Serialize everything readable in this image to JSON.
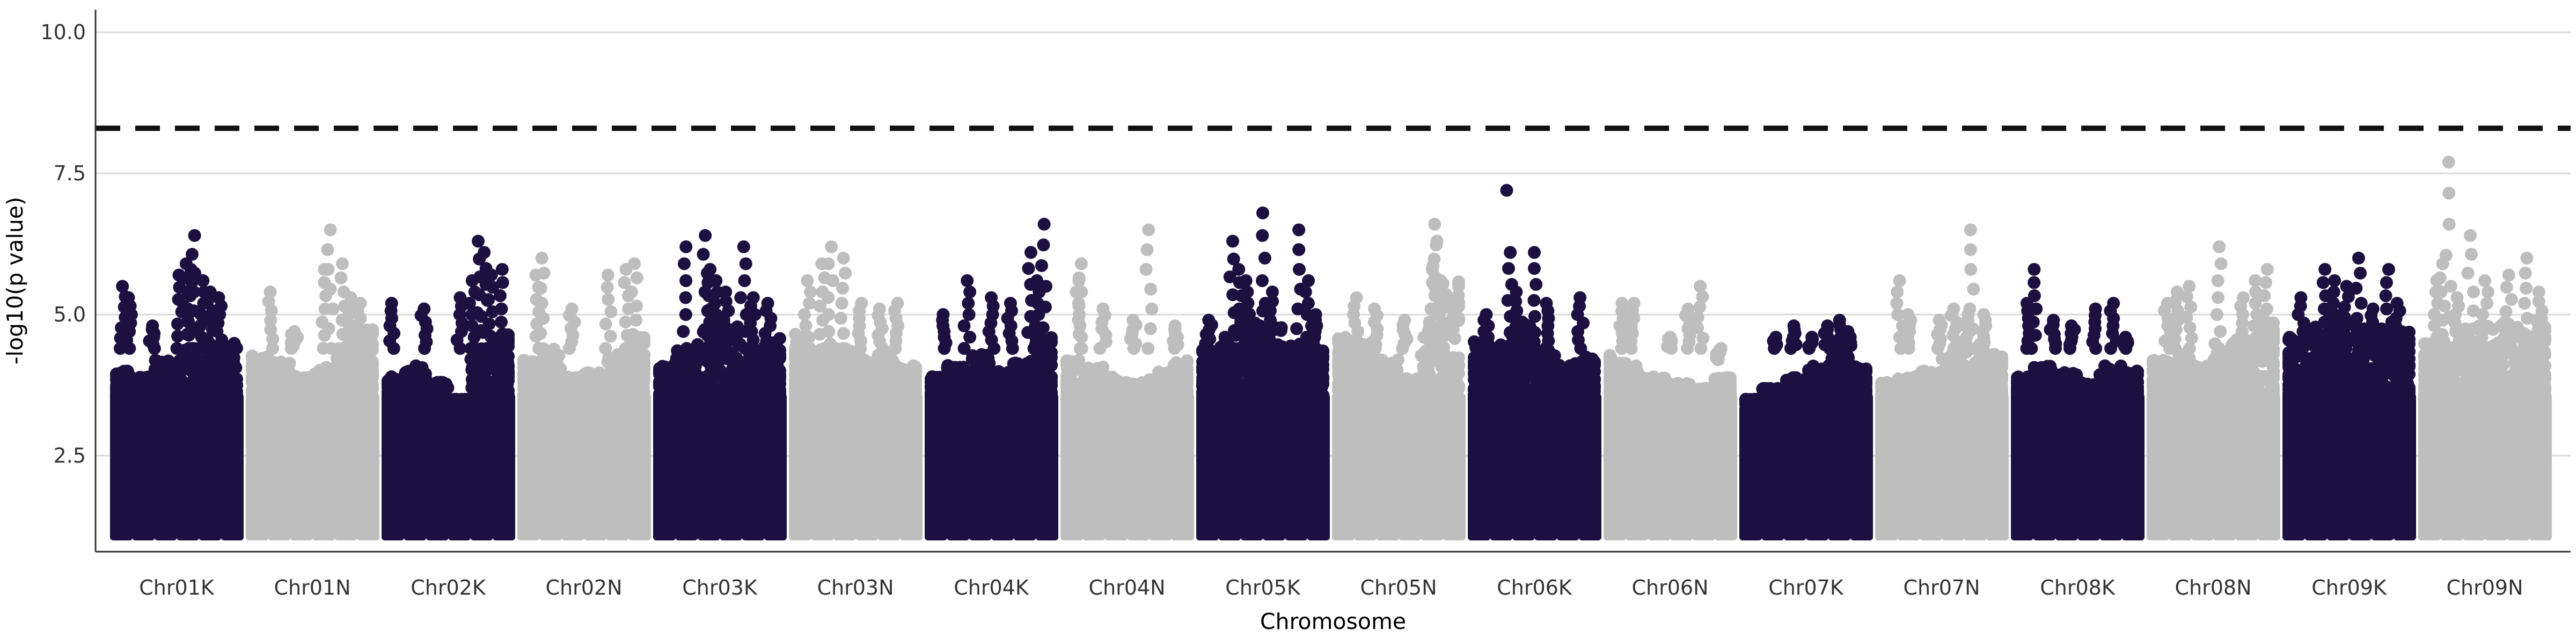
{
  "chart_data": {
    "type": "scatter",
    "title": "",
    "xlabel": "Chromosome",
    "ylabel": "-log10(p value)",
    "ylim": [
      0.8,
      10.4
    ],
    "y_ticks": [
      2.5,
      5.0,
      7.5,
      10.0
    ],
    "y_tick_labels": [
      "2.5",
      "5.0",
      "7.5",
      "10.0"
    ],
    "threshold": 8.3,
    "threshold_style": "dashed",
    "grid": "horizontal major lines",
    "legend": "none",
    "colors": {
      "dark": "#1c1040",
      "light": "#bebebe",
      "grid": "#d9d9d9",
      "threshold": "#111111"
    },
    "categories": [
      "Chr01K",
      "Chr01N",
      "Chr02K",
      "Chr02N",
      "Chr03K",
      "Chr03N",
      "Chr04K",
      "Chr04N",
      "Chr05K",
      "Chr05N",
      "Chr06K",
      "Chr06N",
      "Chr07K",
      "Chr07N",
      "Chr08K",
      "Chr08N",
      "Chr09K",
      "Chr09N"
    ],
    "chromosomes": [
      {
        "name": "Chr01K",
        "color": "dark",
        "bulk_top": [
          4.0,
          3.9,
          4.2,
          4.4,
          4.5,
          4.6
        ],
        "peaks": [
          {
            "x": 0.05,
            "y": 5.5
          },
          {
            "x": 0.1,
            "y": 5.3
          },
          {
            "x": 0.3,
            "y": 4.8
          },
          {
            "x": 0.52,
            "y": 5.7
          },
          {
            "x": 0.58,
            "y": 5.9
          },
          {
            "x": 0.62,
            "y": 5.8
          },
          {
            "x": 0.65,
            "y": 6.4
          },
          {
            "x": 0.72,
            "y": 5.6
          },
          {
            "x": 0.78,
            "y": 5.4
          },
          {
            "x": 0.85,
            "y": 5.3
          }
        ]
      },
      {
        "name": "Chr01N",
        "color": "light",
        "bulk_top": [
          4.3,
          4.2,
          3.9,
          4.1,
          4.4,
          4.8
        ],
        "peaks": [
          {
            "x": 0.15,
            "y": 5.4
          },
          {
            "x": 0.35,
            "y": 4.7
          },
          {
            "x": 0.6,
            "y": 5.8
          },
          {
            "x": 0.65,
            "y": 6.5
          },
          {
            "x": 0.75,
            "y": 5.9
          },
          {
            "x": 0.82,
            "y": 5.3
          },
          {
            "x": 0.9,
            "y": 5.2
          }
        ]
      },
      {
        "name": "Chr02K",
        "color": "dark",
        "bulk_top": [
          3.9,
          4.1,
          3.8,
          3.3,
          4.4,
          4.7
        ],
        "peaks": [
          {
            "x": 0.03,
            "y": 5.2
          },
          {
            "x": 0.3,
            "y": 5.1
          },
          {
            "x": 0.6,
            "y": 5.3
          },
          {
            "x": 0.7,
            "y": 5.6
          },
          {
            "x": 0.75,
            "y": 6.3
          },
          {
            "x": 0.8,
            "y": 6.1
          },
          {
            "x": 0.86,
            "y": 5.7
          },
          {
            "x": 0.95,
            "y": 5.8
          }
        ]
      },
      {
        "name": "Chr02N",
        "color": "light",
        "bulk_top": [
          4.2,
          4.4,
          3.9,
          4.0,
          4.3,
          4.6
        ],
        "peaks": [
          {
            "x": 0.1,
            "y": 5.7
          },
          {
            "x": 0.15,
            "y": 6.0
          },
          {
            "x": 0.4,
            "y": 5.1
          },
          {
            "x": 0.7,
            "y": 5.7
          },
          {
            "x": 0.85,
            "y": 5.8
          },
          {
            "x": 0.92,
            "y": 5.9
          }
        ]
      },
      {
        "name": "Chr03K",
        "color": "dark",
        "bulk_top": [
          4.1,
          4.4,
          4.7,
          4.9,
          4.3,
          4.6
        ],
        "peaks": [
          {
            "x": 0.22,
            "y": 6.2
          },
          {
            "x": 0.38,
            "y": 6.4
          },
          {
            "x": 0.42,
            "y": 5.8
          },
          {
            "x": 0.47,
            "y": 5.6
          },
          {
            "x": 0.55,
            "y": 5.4
          },
          {
            "x": 0.7,
            "y": 6.2
          },
          {
            "x": 0.78,
            "y": 5.3
          },
          {
            "x": 0.9,
            "y": 5.2
          }
        ]
      },
      {
        "name": "Chr03N",
        "color": "light",
        "bulk_top": [
          4.7,
          4.5,
          4.4,
          4.2,
          4.3,
          4.1
        ],
        "peaks": [
          {
            "x": 0.1,
            "y": 5.6
          },
          {
            "x": 0.22,
            "y": 5.9
          },
          {
            "x": 0.3,
            "y": 6.2
          },
          {
            "x": 0.4,
            "y": 6.0
          },
          {
            "x": 0.55,
            "y": 5.2
          },
          {
            "x": 0.7,
            "y": 5.1
          },
          {
            "x": 0.85,
            "y": 5.2
          }
        ]
      },
      {
        "name": "Chr04K",
        "color": "dark",
        "bulk_top": [
          3.9,
          4.1,
          4.3,
          4.0,
          4.2,
          4.6
        ],
        "peaks": [
          {
            "x": 0.1,
            "y": 5.0
          },
          {
            "x": 0.3,
            "y": 5.6
          },
          {
            "x": 0.5,
            "y": 5.3
          },
          {
            "x": 0.66,
            "y": 5.2
          },
          {
            "x": 0.83,
            "y": 6.1
          },
          {
            "x": 0.88,
            "y": 5.6
          },
          {
            "x": 0.94,
            "y": 6.6
          }
        ]
      },
      {
        "name": "Chr04N",
        "color": "light",
        "bulk_top": [
          4.2,
          4.1,
          3.9,
          3.8,
          4.0,
          4.2
        ],
        "peaks": [
          {
            "x": 0.1,
            "y": 5.6
          },
          {
            "x": 0.12,
            "y": 5.9
          },
          {
            "x": 0.3,
            "y": 5.1
          },
          {
            "x": 0.55,
            "y": 4.9
          },
          {
            "x": 0.68,
            "y": 6.5
          },
          {
            "x": 0.9,
            "y": 4.8
          }
        ]
      },
      {
        "name": "Chr05K",
        "color": "dark",
        "bulk_top": [
          4.4,
          4.6,
          5.1,
          4.8,
          4.5,
          4.4
        ],
        "peaks": [
          {
            "x": 0.05,
            "y": 4.9
          },
          {
            "x": 0.25,
            "y": 6.3
          },
          {
            "x": 0.3,
            "y": 5.8
          },
          {
            "x": 0.36,
            "y": 5.6
          },
          {
            "x": 0.5,
            "y": 6.8
          },
          {
            "x": 0.58,
            "y": 5.4
          },
          {
            "x": 0.8,
            "y": 6.5
          },
          {
            "x": 0.88,
            "y": 5.6
          },
          {
            "x": 0.94,
            "y": 5.0
          }
        ]
      },
      {
        "name": "Chr05N",
        "color": "light",
        "bulk_top": [
          4.6,
          4.5,
          4.2,
          3.9,
          4.8,
          5.6
        ],
        "peaks": [
          {
            "x": 0.15,
            "y": 5.3
          },
          {
            "x": 0.3,
            "y": 5.1
          },
          {
            "x": 0.55,
            "y": 4.9
          },
          {
            "x": 0.78,
            "y": 5.8
          },
          {
            "x": 0.8,
            "y": 6.6
          },
          {
            "x": 0.82,
            "y": 6.3
          },
          {
            "x": 0.85,
            "y": 5.6
          }
        ]
      },
      {
        "name": "Chr06K",
        "color": "dark",
        "bulk_top": [
          4.6,
          4.5,
          4.9,
          4.4,
          4.2,
          4.3
        ],
        "peaks": [
          {
            "x": 0.1,
            "y": 5.0
          },
          {
            "x": 0.3,
            "y": 6.1
          },
          {
            "x": 0.35,
            "y": 5.4
          },
          {
            "x": 0.5,
            "y": 6.1
          },
          {
            "x": 0.6,
            "y": 5.2
          },
          {
            "x": 0.88,
            "y": 5.3
          }
        ]
      },
      {
        "name": "Chr06N",
        "color": "light",
        "bulk_top": [
          4.3,
          4.1,
          3.9,
          3.8,
          3.7,
          3.9
        ],
        "peaks": [
          {
            "x": 0.1,
            "y": 5.2
          },
          {
            "x": 0.2,
            "y": 5.2
          },
          {
            "x": 0.5,
            "y": 4.6
          },
          {
            "x": 0.65,
            "y": 5.1
          },
          {
            "x": 0.75,
            "y": 5.5
          },
          {
            "x": 0.9,
            "y": 4.2
          }
        ]
      },
      {
        "name": "Chr07K",
        "color": "dark",
        "bulk_top": [
          3.4,
          3.7,
          3.9,
          4.1,
          4.3,
          4.1
        ],
        "peaks": [
          {
            "x": 0.25,
            "y": 4.6
          },
          {
            "x": 0.4,
            "y": 4.8
          },
          {
            "x": 0.55,
            "y": 4.6
          },
          {
            "x": 0.68,
            "y": 4.8
          },
          {
            "x": 0.78,
            "y": 4.9
          },
          {
            "x": 0.85,
            "y": 4.7
          }
        ]
      },
      {
        "name": "Chr07N",
        "color": "light",
        "bulk_top": [
          3.8,
          3.9,
          4.0,
          4.4,
          4.5,
          4.3
        ],
        "peaks": [
          {
            "x": 0.15,
            "y": 5.6
          },
          {
            "x": 0.22,
            "y": 5.0
          },
          {
            "x": 0.48,
            "y": 4.9
          },
          {
            "x": 0.6,
            "y": 5.1
          },
          {
            "x": 0.72,
            "y": 5.0
          },
          {
            "x": 0.74,
            "y": 6.5
          },
          {
            "x": 0.85,
            "y": 5.0
          }
        ]
      },
      {
        "name": "Chr08K",
        "color": "dark",
        "bulk_top": [
          3.9,
          4.1,
          4.0,
          3.8,
          4.1,
          4.0
        ],
        "peaks": [
          {
            "x": 0.08,
            "y": 5.2
          },
          {
            "x": 0.14,
            "y": 5.8
          },
          {
            "x": 0.3,
            "y": 4.9
          },
          {
            "x": 0.45,
            "y": 4.8
          },
          {
            "x": 0.65,
            "y": 5.1
          },
          {
            "x": 0.8,
            "y": 5.2
          },
          {
            "x": 0.9,
            "y": 4.6
          }
        ]
      },
      {
        "name": "Chr08N",
        "color": "light",
        "bulk_top": [
          4.2,
          4.3,
          4.1,
          4.5,
          4.6,
          4.9
        ],
        "peaks": [
          {
            "x": 0.12,
            "y": 5.2
          },
          {
            "x": 0.2,
            "y": 5.4
          },
          {
            "x": 0.3,
            "y": 5.5
          },
          {
            "x": 0.55,
            "y": 6.2
          },
          {
            "x": 0.75,
            "y": 5.3
          },
          {
            "x": 0.85,
            "y": 5.6
          },
          {
            "x": 0.95,
            "y": 5.8
          }
        ]
      },
      {
        "name": "Chr09K",
        "color": "dark",
        "bulk_top": [
          4.6,
          4.8,
          5.0,
          4.9,
          4.8,
          4.7
        ],
        "peaks": [
          {
            "x": 0.1,
            "y": 5.3
          },
          {
            "x": 0.3,
            "y": 5.8
          },
          {
            "x": 0.38,
            "y": 5.6
          },
          {
            "x": 0.48,
            "y": 5.5
          },
          {
            "x": 0.58,
            "y": 6.0
          },
          {
            "x": 0.7,
            "y": 5.1
          },
          {
            "x": 0.83,
            "y": 5.8
          },
          {
            "x": 0.9,
            "y": 5.2
          }
        ]
      },
      {
        "name": "Chr09N",
        "color": "light",
        "bulk_top": [
          4.5,
          4.6,
          4.8,
          4.9,
          4.8,
          5.0
        ],
        "peaks": [
          {
            "x": 0.1,
            "y": 5.6
          },
          {
            "x": 0.15,
            "y": 5.9
          },
          {
            "x": 0.2,
            "y": 7.7
          },
          {
            "x": 0.27,
            "y": 5.3
          },
          {
            "x": 0.38,
            "y": 6.4
          },
          {
            "x": 0.5,
            "y": 5.6
          },
          {
            "x": 0.7,
            "y": 5.7
          },
          {
            "x": 0.85,
            "y": 6.0
          },
          {
            "x": 0.95,
            "y": 5.4
          }
        ]
      }
    ],
    "highlight_points": [
      {
        "chromosome": "Chr06K",
        "x": 0.27,
        "y": 7.2
      }
    ]
  }
}
